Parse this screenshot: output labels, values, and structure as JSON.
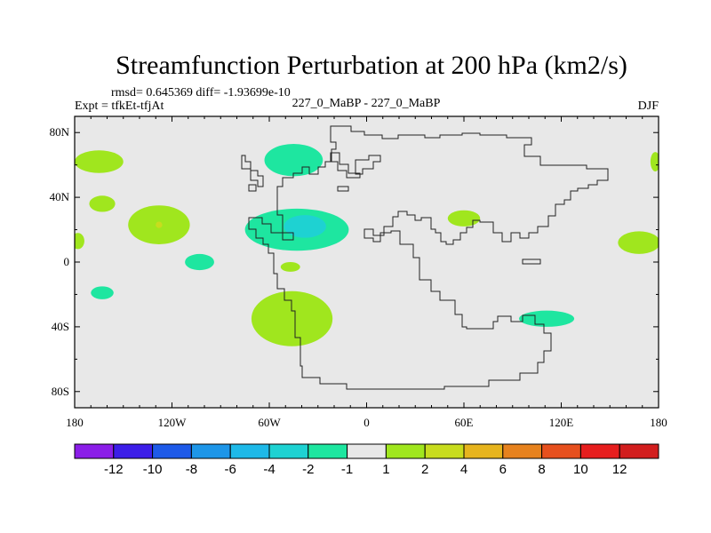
{
  "title": "Streamfunction Perturbation at 200 hPa (km2/s)",
  "stats": "rmsd= 0.645369 diff= -1.93699e-10",
  "expt": "Expt = tfkEt-tfjAt",
  "case": "227_0_MaBP - 227_0_MaBP",
  "season": "DJF",
  "chart_data": {
    "type": "contour-map",
    "projection": "cylindrical-equidistant",
    "lon_range": [
      -180,
      180
    ],
    "lat_range": [
      -90,
      90
    ],
    "x_ticks": [
      {
        "lon": -180,
        "label": "180"
      },
      {
        "lon": -120,
        "label": "120W"
      },
      {
        "lon": -60,
        "label": "60W"
      },
      {
        "lon": 0,
        "label": "0"
      },
      {
        "lon": 60,
        "label": "60E"
      },
      {
        "lon": 120,
        "label": "120E"
      },
      {
        "lon": 180,
        "label": "180"
      }
    ],
    "y_ticks": [
      {
        "lat": 80,
        "label": "80N"
      },
      {
        "lat": 40,
        "label": "40N"
      },
      {
        "lat": 0,
        "label": "0"
      },
      {
        "lat": -40,
        "label": "40S"
      },
      {
        "lat": -80,
        "label": "80S"
      }
    ],
    "colorbar": {
      "levels": [
        "-12",
        "-10",
        "-8",
        "-6",
        "-4",
        "-2",
        "-1",
        "1",
        "2",
        "4",
        "6",
        "8",
        "10",
        "12"
      ],
      "colors": [
        "#8b1ee8",
        "#3c1ee8",
        "#1e5ae8",
        "#1e96e8",
        "#1eb9e8",
        "#1ed2d2",
        "#1ee6a0",
        "#e8e8e8",
        "#a0e61e",
        "#c8dc1e",
        "#e6b41e",
        "#e6821e",
        "#e6501e",
        "#e61e1e",
        "#d21e1e"
      ]
    },
    "regions": [
      {
        "level": "1 to 2",
        "lon": -165,
        "lat": 62,
        "r_lon": 15,
        "r_lat": 7
      },
      {
        "level": "1 to 2",
        "lon": -163,
        "lat": 36,
        "r_lon": 8,
        "r_lat": 5
      },
      {
        "level": "1 to 2",
        "lon": -128,
        "lat": 23,
        "r_lon": 19,
        "r_lat": 12
      },
      {
        "level": "2 to 4",
        "lon": -128,
        "lat": 23,
        "r_lon": 2,
        "r_lat": 2
      },
      {
        "level": "1 to 2",
        "lon": -178,
        "lat": 13,
        "r_lon": 4,
        "r_lat": 5
      },
      {
        "level": "-2 to -1",
        "lon": -103,
        "lat": 0,
        "r_lon": 9,
        "r_lat": 5
      },
      {
        "level": "-2 to -1",
        "lon": -163,
        "lat": -19,
        "r_lon": 7,
        "r_lat": 4
      },
      {
        "level": "1 to 2",
        "lon": -46,
        "lat": -35,
        "r_lon": 25,
        "r_lat": 17
      },
      {
        "level": "1 to 2",
        "lon": -47,
        "lat": -3,
        "r_lon": 6,
        "r_lat": 3
      },
      {
        "level": "-2 to -1",
        "lon": -45,
        "lat": 63,
        "r_lon": 18,
        "r_lat": 10
      },
      {
        "level": "-2 to -1",
        "lon": -43,
        "lat": 20,
        "r_lon": 32,
        "r_lat": 13
      },
      {
        "level": "-4 to -2",
        "lon": -38,
        "lat": 22,
        "r_lon": 13,
        "r_lat": 7
      },
      {
        "level": "1 to 2",
        "lon": 60,
        "lat": 27,
        "r_lon": 10,
        "r_lat": 5
      },
      {
        "level": "-2 to -1",
        "lon": 111,
        "lat": -35,
        "r_lon": 17,
        "r_lat": 5
      },
      {
        "level": "1 to 2",
        "lon": 168,
        "lat": 12,
        "r_lon": 13,
        "r_lat": 7
      },
      {
        "level": "1 to 2",
        "lon": 178,
        "lat": 62,
        "r_lon": 3,
        "r_lat": 6
      }
    ]
  }
}
